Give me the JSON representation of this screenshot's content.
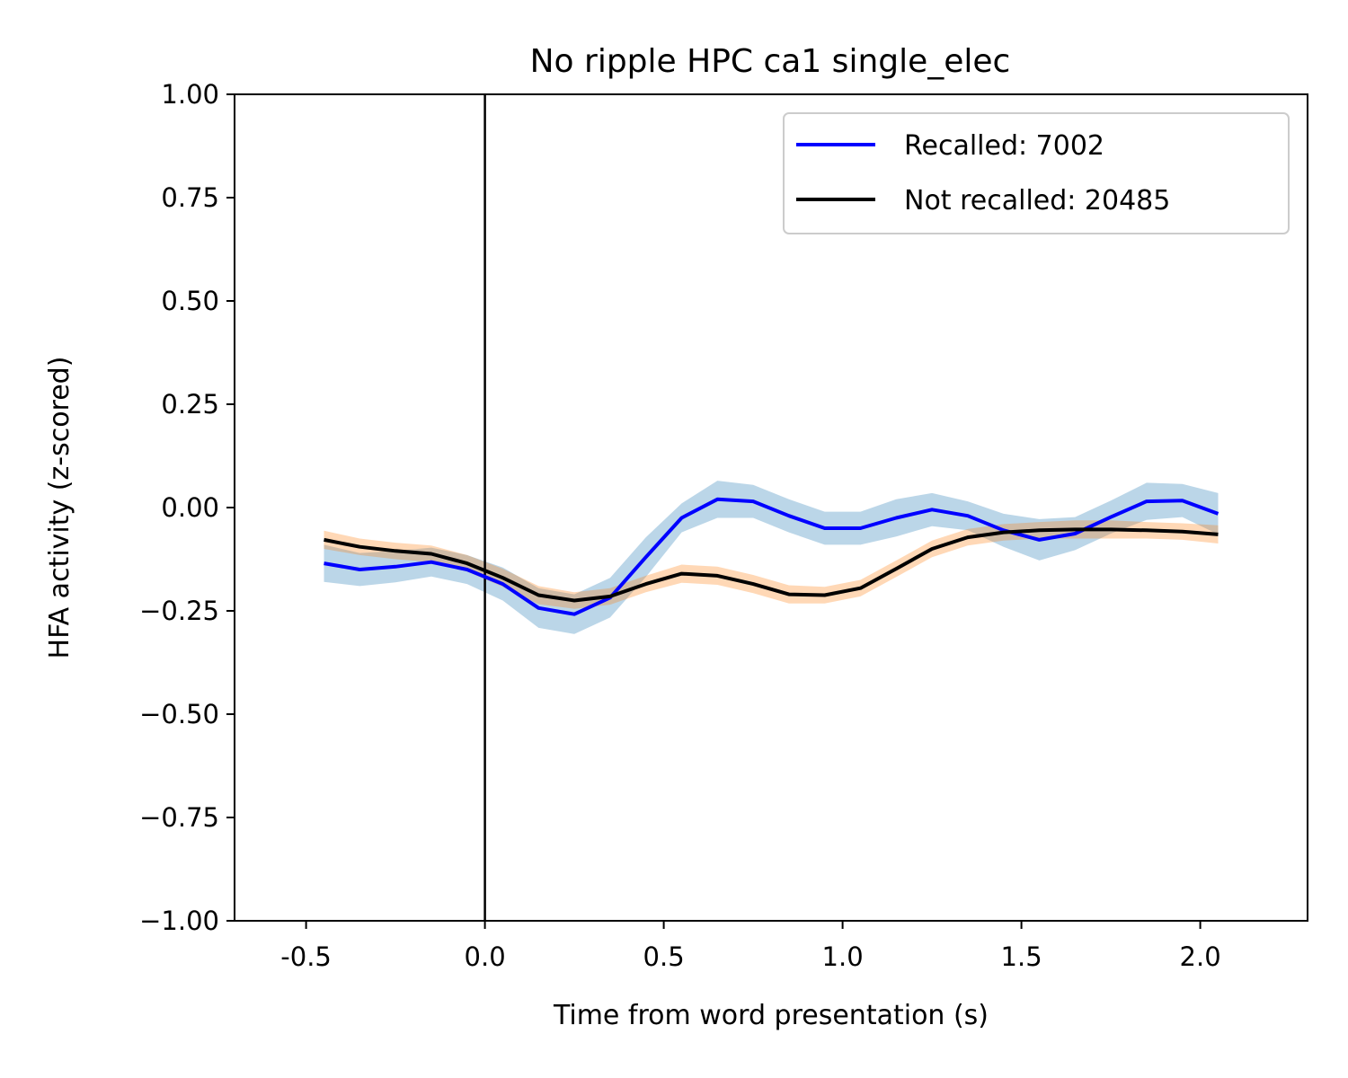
{
  "chart_data": {
    "type": "line",
    "title": "No ripple HPC ca1 single_elec",
    "xlabel": "Time from word presentation (s)",
    "ylabel": "HFA activity (z-scored)",
    "xlim": [
      -0.7,
      2.3
    ],
    "ylim": [
      -1.0,
      1.0
    ],
    "x_ticks": [
      -0.5,
      0.0,
      0.5,
      1.0,
      1.5,
      2.0
    ],
    "x_tick_labels": [
      "-0.5",
      "0.0",
      "0.5",
      "1.0",
      "1.5",
      "2.0"
    ],
    "y_ticks": [
      1.0,
      0.75,
      0.5,
      0.25,
      0.0,
      -0.25,
      -0.5,
      -0.75,
      -1.0
    ],
    "y_tick_labels": [
      "1.00",
      "0.75",
      "0.50",
      "0.25",
      "0.00",
      "−0.25",
      "−0.50",
      "−0.75",
      "−1.00"
    ],
    "grid": false,
    "legend_position": "top-right",
    "vline_x": 0.0,
    "x": [
      -0.45,
      -0.35,
      -0.25,
      -0.15,
      -0.05,
      0.05,
      0.15,
      0.25,
      0.35,
      0.45,
      0.55,
      0.65,
      0.75,
      0.85,
      0.95,
      1.05,
      1.15,
      1.25,
      1.35,
      1.45,
      1.55,
      1.65,
      1.75,
      1.85,
      1.95,
      2.05
    ],
    "series": [
      {
        "name": "Recalled: 7002",
        "color": "#0000ff",
        "band_color": "#1f77b4",
        "values": [
          -0.135,
          -0.15,
          -0.143,
          -0.132,
          -0.15,
          -0.185,
          -0.243,
          -0.258,
          -0.218,
          -0.12,
          -0.025,
          0.02,
          0.015,
          -0.02,
          -0.05,
          -0.05,
          -0.025,
          -0.005,
          -0.02,
          -0.055,
          -0.078,
          -0.063,
          -0.023,
          0.015,
          0.017,
          -0.015
        ],
        "error": [
          0.045,
          0.04,
          0.038,
          0.035,
          0.035,
          0.04,
          0.048,
          0.048,
          0.048,
          0.048,
          0.035,
          0.045,
          0.04,
          0.04,
          0.04,
          0.04,
          0.045,
          0.04,
          0.035,
          0.04,
          0.05,
          0.04,
          0.04,
          0.045,
          0.04,
          0.05
        ]
      },
      {
        "name": "Not recalled: 20485",
        "color": "#000000",
        "band_color": "#ff7f0e",
        "values": [
          -0.078,
          -0.095,
          -0.105,
          -0.112,
          -0.135,
          -0.17,
          -0.212,
          -0.225,
          -0.215,
          -0.185,
          -0.16,
          -0.165,
          -0.185,
          -0.21,
          -0.212,
          -0.195,
          -0.148,
          -0.1,
          -0.072,
          -0.06,
          -0.055,
          -0.053,
          -0.053,
          -0.055,
          -0.058,
          -0.065
        ],
        "error": [
          0.022,
          0.02,
          0.02,
          0.02,
          0.02,
          0.022,
          0.022,
          0.02,
          0.02,
          0.02,
          0.022,
          0.022,
          0.022,
          0.022,
          0.02,
          0.02,
          0.02,
          0.02,
          0.02,
          0.02,
          0.02,
          0.022,
          0.022,
          0.02,
          0.02,
          0.022
        ]
      }
    ]
  }
}
